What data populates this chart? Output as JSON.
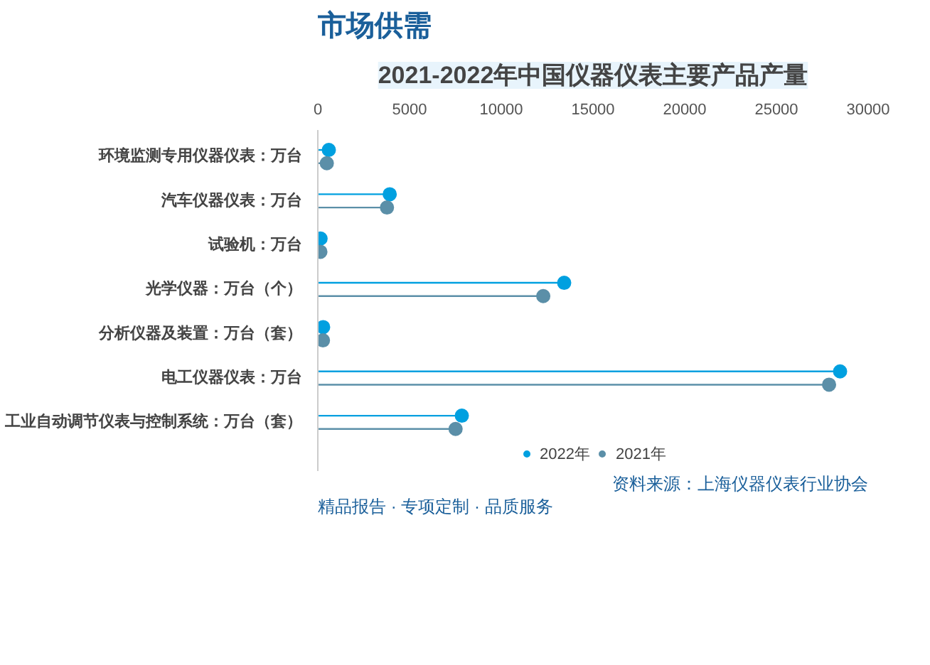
{
  "chart_data": {
    "type": "lollipop",
    "orientation": "horizontal",
    "title": "2021-2022年中国仪器仪表主要产品产量",
    "categories": [
      "环境监测专用仪器仪表：万台",
      "汽车仪器仪表：万台",
      "试验机：万台",
      "光学仪器：万台（个）",
      "分析仪器及装置：万台（套）",
      "电工仪器仪表：万台",
      "工业自动调节仪表与控制系统：万台（套）"
    ],
    "series": [
      {
        "name": "2022年",
        "color": "#00a0e0",
        "values": [
          600,
          3920,
          150,
          13430,
          290,
          28470,
          7850
        ]
      },
      {
        "name": "2021年",
        "color": "#5b8fa8",
        "values": [
          490,
          3770,
          140,
          12290,
          280,
          27870,
          7510
        ]
      }
    ],
    "xlim": [
      0,
      30000
    ],
    "xticks": [
      0,
      5000,
      10000,
      15000,
      20000,
      25000,
      30000
    ],
    "grid": false,
    "legend": "bottom",
    "marker": "circle",
    "annotations": [
      "市场供需",
      "资料来源：上海仪器仪表行业协会",
      "精品报告 · 专项定制 · 品质服务"
    ]
  }
}
